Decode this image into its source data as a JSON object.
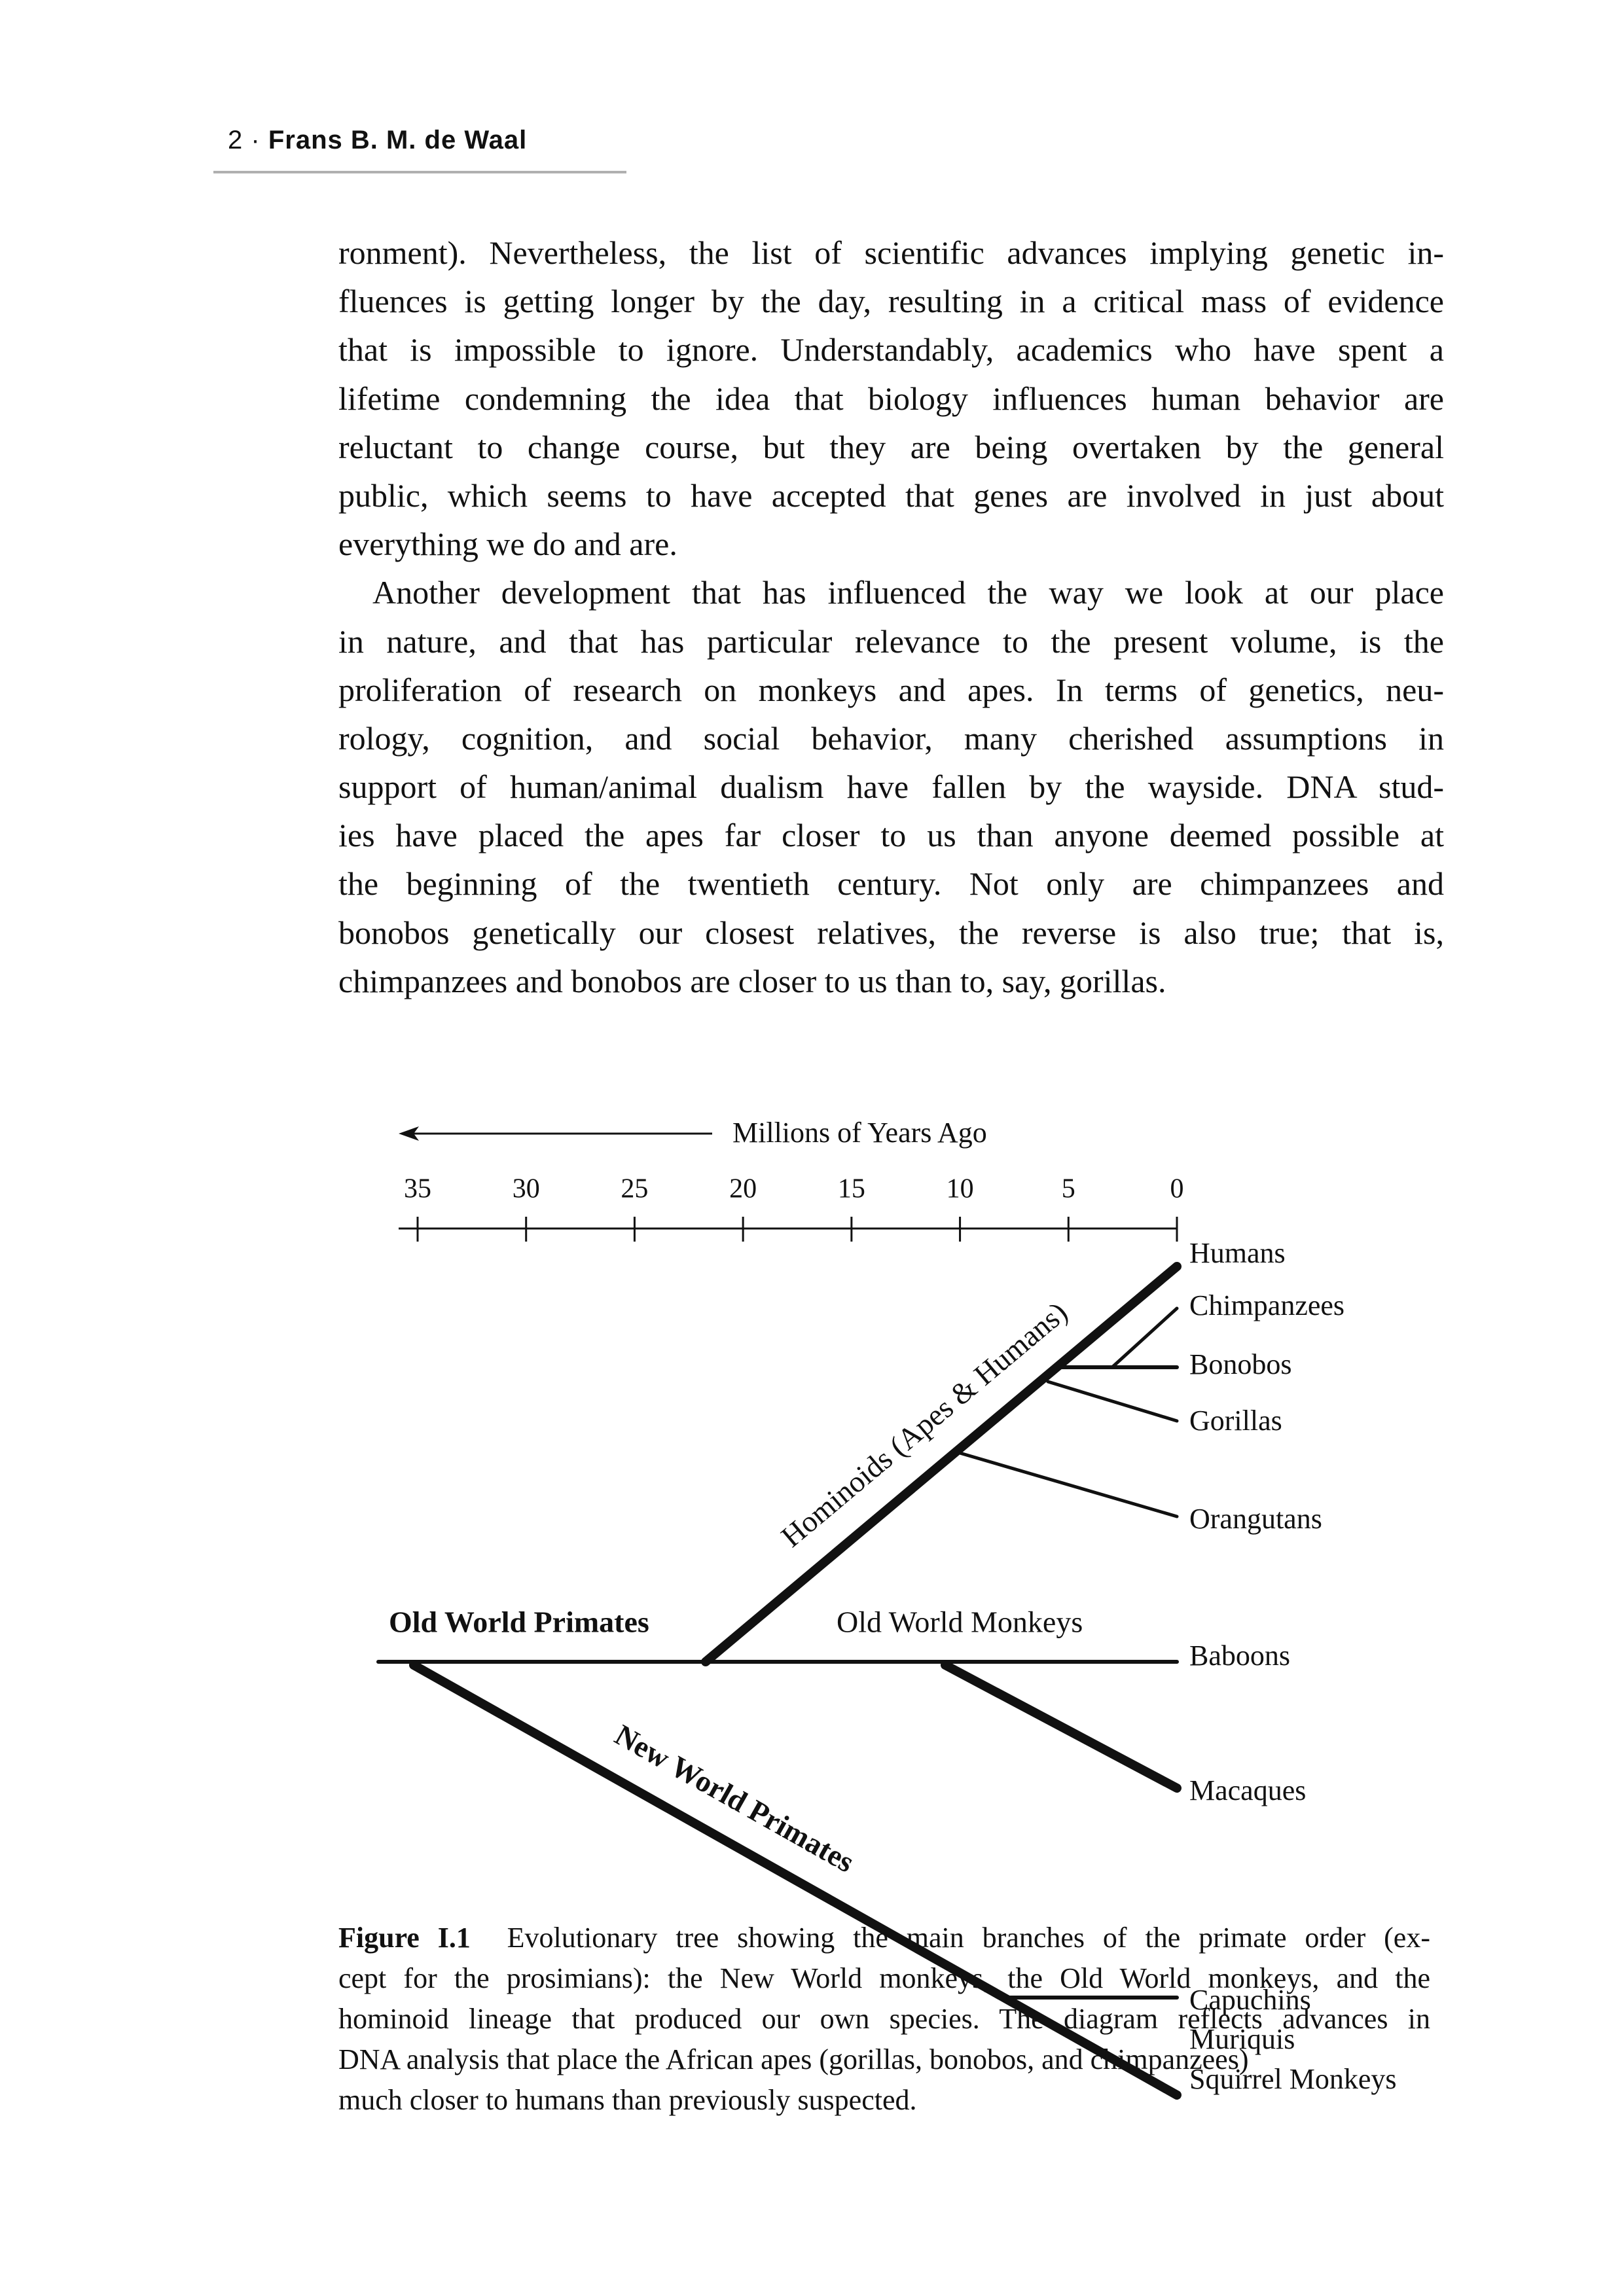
{
  "header": {
    "page_number": "2",
    "separator": "·",
    "author": "Frans B. M. de Waal"
  },
  "body": {
    "lines": [
      "ronment). Nevertheless, the list of scientific advances implying genetic in-",
      "fluences is getting longer by the day, resulting in a critical mass of evidence",
      "that is impossible to ignore. Understandably, academics who have spent a",
      "lifetime condemning the idea that biology influences human behavior are",
      "reluctant to change course, but they are being overtaken by the general",
      "public, which seems to have accepted that genes are involved in just about",
      "everything we do and are.",
      "Another development that has influenced the way we look at our place",
      "in nature, and that has particular relevance to the present volume, is the",
      "proliferation of research on monkeys and apes. In terms of genetics, neu-",
      "rology, cognition, and social behavior, many cherished assumptions in",
      "support of human/animal dualism have fallen by the wayside. DNA stud-",
      "ies have placed the apes far closer to us than anyone deemed possible at",
      "the beginning of the twentieth century. Not only are chimpanzees and",
      "bonobos genetically our closest relatives, the reverse is also true; that is,",
      "chimpanzees and bonobos are closer to us than to, say, gorillas."
    ]
  },
  "figure": {
    "axis_title": "Millions of Years Ago",
    "ticks": [
      "35",
      "30",
      "25",
      "20",
      "15",
      "10",
      "5",
      "0"
    ],
    "group_labels": {
      "old_world_primates": "Old World Primates",
      "old_world_monkeys": "Old World Monkeys",
      "hominoids": "Hominoids (Apes & Humans)",
      "new_world_primates": "New World Primates"
    },
    "taxa": [
      "Humans",
      "Chimpanzees",
      "Bonobos",
      "Gorillas",
      "Orangutans",
      "Baboons",
      "Macaques",
      "Capuchins",
      "Muriquis",
      "Squirrel Monkeys"
    ]
  },
  "caption": {
    "label": "Figure I.1",
    "lines": [
      "Evolutionary tree showing the main branches of the primate order (ex-",
      "cept for the prosimians): the New World monkeys, the Old World monkeys, and the",
      "hominoid lineage that produced our own species. The diagram reflects advances in",
      "DNA analysis that place the African apes (gorillas, bonobos, and chimpanzees)",
      "much closer to humans than previously suspected."
    ]
  }
}
